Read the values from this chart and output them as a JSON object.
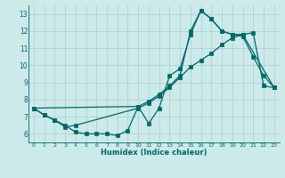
{
  "xlabel": "Humidex (Indice chaleur)",
  "bg_color": "#cceaea",
  "line_color": "#006868",
  "grid_color": "#aacece",
  "xlim": [
    -0.5,
    23.5
  ],
  "ylim": [
    5.5,
    13.5
  ],
  "xticks": [
    0,
    1,
    2,
    3,
    4,
    5,
    6,
    7,
    8,
    9,
    10,
    11,
    12,
    13,
    14,
    15,
    16,
    17,
    18,
    19,
    20,
    21,
    22,
    23
  ],
  "yticks": [
    6,
    7,
    8,
    9,
    10,
    11,
    12,
    13
  ],
  "line1_x": [
    0,
    1,
    2,
    3,
    4,
    5,
    6,
    7,
    8,
    9,
    10,
    11,
    12,
    13,
    14,
    15,
    16,
    17,
    18,
    19,
    20,
    21,
    22,
    23
  ],
  "line1_y": [
    7.5,
    7.1,
    6.8,
    6.5,
    6.1,
    6.0,
    6.0,
    6.0,
    5.9,
    6.2,
    7.6,
    6.6,
    7.5,
    9.4,
    9.8,
    11.8,
    13.2,
    12.7,
    12.0,
    11.8,
    11.7,
    10.5,
    9.4,
    8.7
  ],
  "line2_x": [
    0,
    1,
    2,
    3,
    4,
    10,
    11,
    12,
    13,
    14,
    15,
    16,
    17,
    18,
    19,
    20,
    21,
    22,
    23
  ],
  "line2_y": [
    7.5,
    7.1,
    6.8,
    6.4,
    6.5,
    7.5,
    7.8,
    8.2,
    8.7,
    9.3,
    9.9,
    10.3,
    10.7,
    11.2,
    11.6,
    11.8,
    11.9,
    8.8,
    8.7
  ],
  "line3_x": [
    0,
    10,
    11,
    12,
    13,
    14,
    15,
    16,
    17,
    18,
    19,
    20,
    23
  ],
  "line3_y": [
    7.5,
    7.6,
    7.9,
    8.3,
    8.8,
    9.4,
    12.0,
    13.2,
    12.7,
    12.0,
    11.8,
    11.8,
    8.7
  ]
}
